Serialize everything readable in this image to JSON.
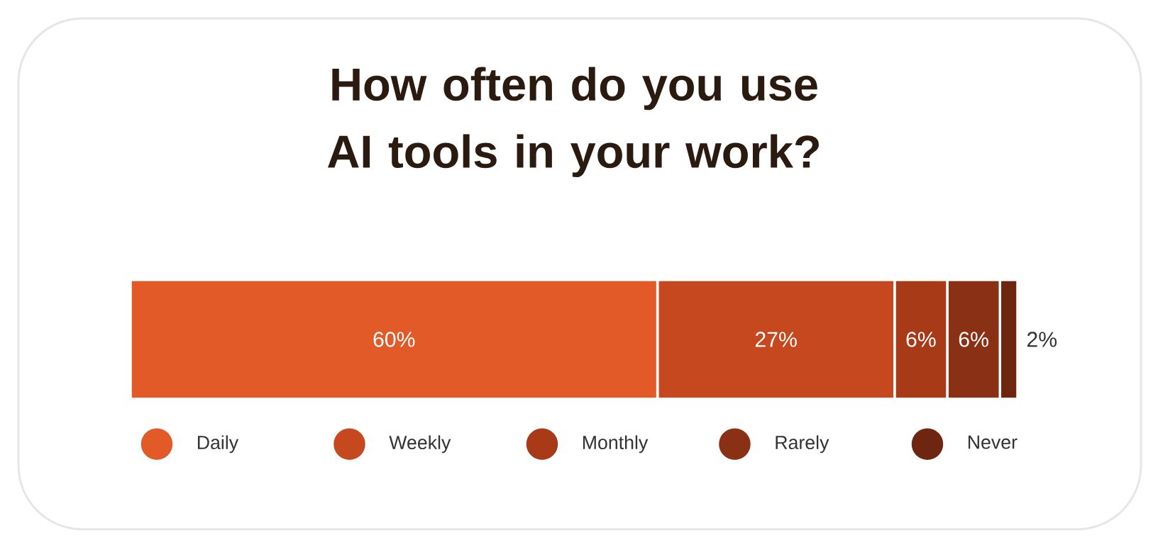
{
  "chart_data": {
    "type": "bar",
    "orientation": "horizontal",
    "stacked": true,
    "title": "How often do you use AI tools in your work?",
    "categories": [
      null
    ],
    "legend": "bottom",
    "series": [
      {
        "name": "Daily",
        "color": "#e35a29",
        "values": [
          60
        ],
        "value_labels": [
          "60%"
        ]
      },
      {
        "name": "Weekly",
        "color": "#c5481f",
        "values": [
          27
        ],
        "value_labels": [
          "27%"
        ]
      },
      {
        "name": "Monthly",
        "color": "#a93a18",
        "values": [
          6
        ],
        "value_labels": [
          "6%"
        ]
      },
      {
        "name": "Rarely",
        "color": "#8a3014",
        "values": [
          6
        ],
        "value_labels": [
          "6%"
        ]
      },
      {
        "name": "Never",
        "color": "#6e2610",
        "values": [
          2
        ],
        "value_labels": [
          "2%"
        ]
      }
    ]
  }
}
